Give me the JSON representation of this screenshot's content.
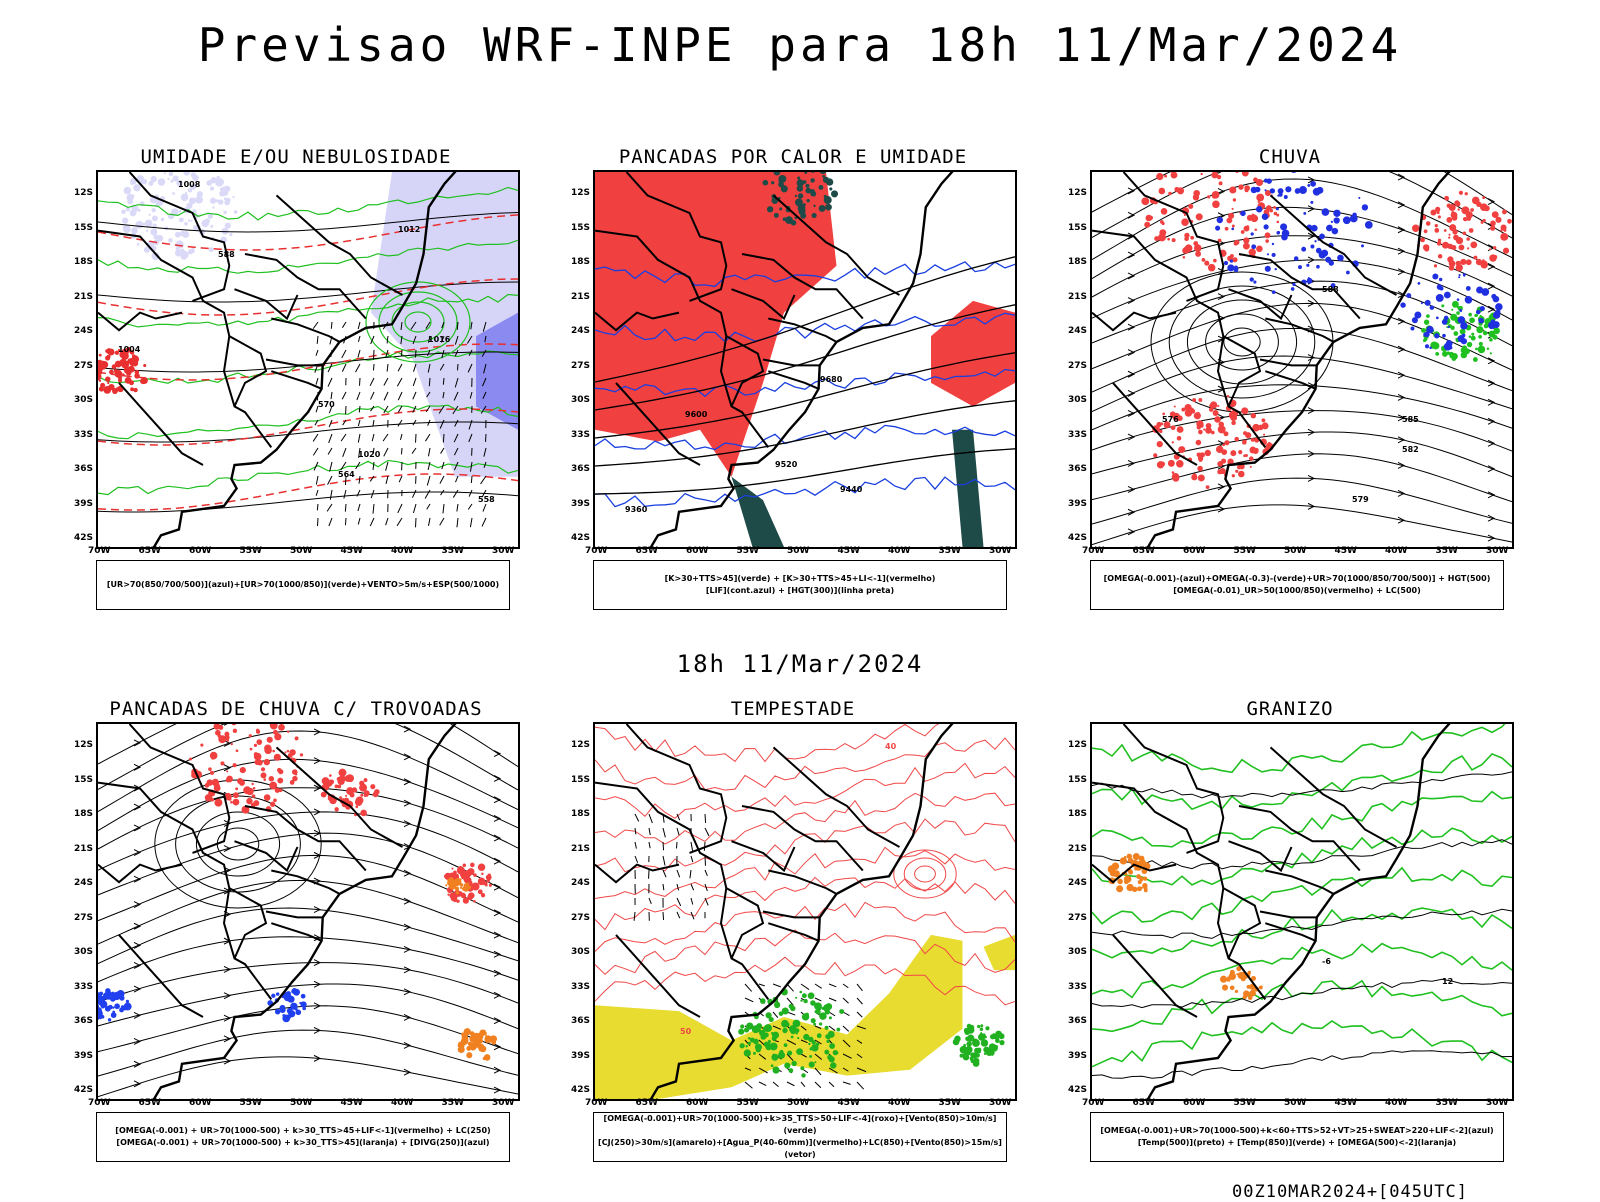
{
  "header": {
    "title": "Previsao WRF-INPE  para 18h 11/Mar/2024",
    "mid_time": "18h 11/Mar/2024",
    "footer": "00Z10MAR2024+[045UTC]"
  },
  "axes": {
    "lat_labels": [
      "12S",
      "15S",
      "18S",
      "21S",
      "24S",
      "27S",
      "30S",
      "33S",
      "36S",
      "39S",
      "42S"
    ],
    "lon_labels": [
      "70W",
      "65W",
      "60W",
      "55W",
      "50W",
      "45W",
      "40W",
      "35W",
      "30W"
    ]
  },
  "panels": [
    {
      "title": "UMIDADE E/OU NEBULOSIDADE",
      "legend": [
        "[UR>70(850/700/500)](azul)+[UR>70(1000/850)](verde)+VENTO>5m/s+ESP(500/1000)"
      ],
      "contour_labels": [
        "1008",
        "1012",
        "1016",
        "1020",
        "1004",
        "570",
        "564",
        "558",
        "588"
      ],
      "fills": [
        "#d7d5f7",
        "#8a8af0"
      ],
      "line_colors": [
        "#20c020",
        "#000000",
        "#e83030"
      ]
    },
    {
      "title": "PANCADAS POR CALOR E UMIDADE",
      "legend": [
        "[K>30+TTS>45](verde) + [K>30+TTS>45+LI<-1](vermelho)",
        "[LIF](cont.azul) + [HGT(300)](linha preta)"
      ],
      "contour_labels": [
        "9680",
        "9600",
        "9520",
        "9440",
        "9360"
      ],
      "fills": [
        "#f04040",
        "#1e4a48"
      ],
      "line_colors": [
        "#1a3fe0",
        "#000000"
      ]
    },
    {
      "title": "CHUVA",
      "legend": [
        "[OMEGA(-0.001)-(azul)+OMEGA(-0.3)-(verde)+UR>70(1000/850/700/500)] + HGT(500)",
        "[OMEGA(-0.01)_UR>50(1000/850)(vermelho) + LC(500)"
      ],
      "contour_labels": [
        "588",
        "585",
        "582",
        "579",
        "576"
      ],
      "fills": [
        "#f04040",
        "#2030e0",
        "#20c020"
      ],
      "line_colors": [
        "#000000"
      ]
    },
    {
      "title": "PANCADAS DE CHUVA C/ TROVOADAS",
      "legend": [
        "[OMEGA(-0.001) + UR>70(1000-500) + k>30_TTS>45+LIF<-1](vermelho) + LC(250)",
        "[OMEGA(-0.001) + UR>70(1000-500) + k>30_TTS>45](laranja) + [DIVG(250)](azul)"
      ],
      "contour_labels": [],
      "fills": [
        "#f04040",
        "#f08020",
        "#2040f0"
      ],
      "line_colors": [
        "#000000"
      ]
    },
    {
      "title": "TEMPESTADE",
      "legend": [
        "[OMEGA(-0.001)+UR>70(1000-500)+k>35_TTS>50+LIF<-4](roxo)+[Vento(850)>10m/s](verde)",
        "[CJ(250)>30m/s](amarelo)+[Agua_P(40-60mm)](vermelho)+LC(850)+[Vento(850)>15m/s](vetor)"
      ],
      "contour_labels": [
        "40",
        "50"
      ],
      "fills": [
        "#e8dc30",
        "#20b020"
      ],
      "line_colors": [
        "#f04848",
        "#000000"
      ]
    },
    {
      "title": "GRANIZO",
      "legend": [
        "[OMEGA(-0.001)+UR>70(1000-500)+k<60+TTS>52+VT>25+SWEAT>220+LIF<-2](azul)",
        "[Temp(500)](preto) + [Temp(850)](verde) + [OMEGA(500)<-2](laranja)"
      ],
      "contour_labels": [
        "12",
        "-6"
      ],
      "fills": [
        "#f08020"
      ],
      "line_colors": [
        "#20c020",
        "#000000"
      ]
    }
  ]
}
